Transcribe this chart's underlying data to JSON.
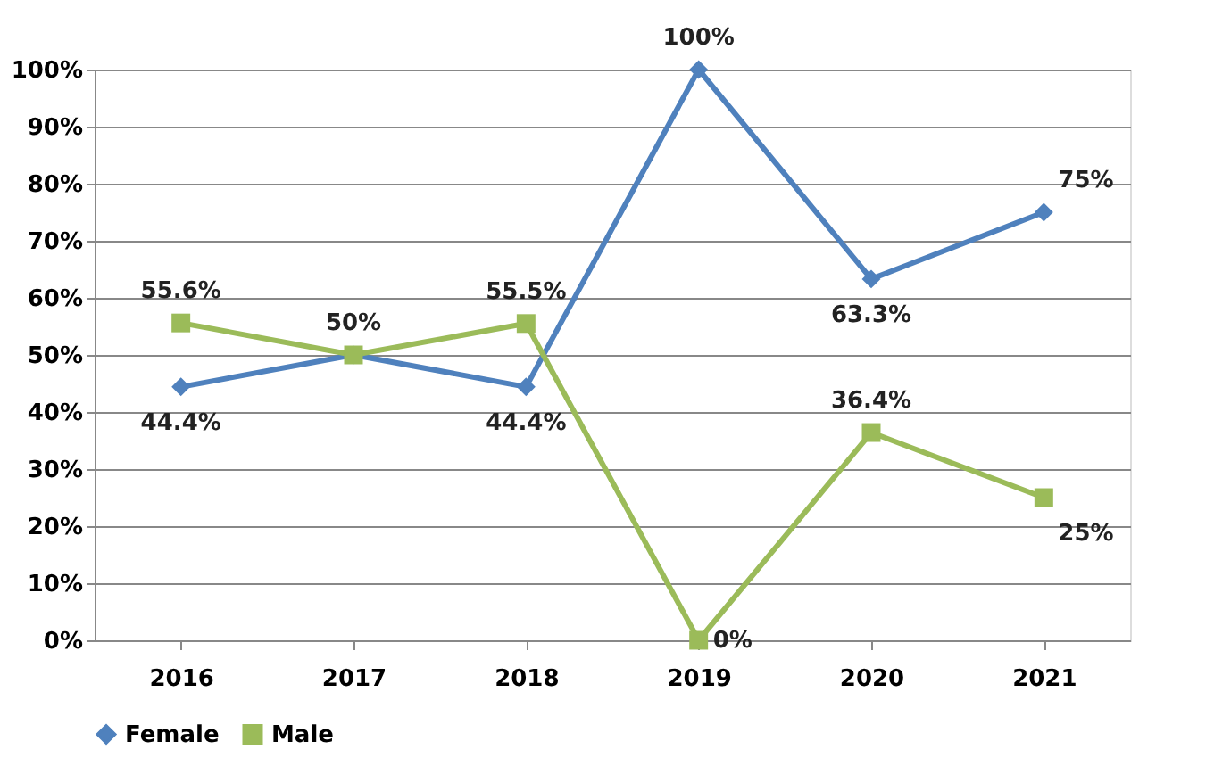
{
  "chart_data": {
    "type": "line",
    "categories": [
      "2016",
      "2017",
      "2018",
      "2019",
      "2020",
      "2021"
    ],
    "series": [
      {
        "name": "Female",
        "color": "#4f81bd",
        "marker": "diamond",
        "values": [
          44.4,
          50,
          44.4,
          100,
          63.3,
          75
        ],
        "value_labels": [
          "44.4%",
          "50%",
          "44.4%",
          "100%",
          "63.3%",
          "75%"
        ]
      },
      {
        "name": "Male",
        "color": "#9bbb59",
        "marker": "square",
        "values": [
          55.6,
          50,
          55.5,
          0,
          36.4,
          25
        ],
        "value_labels": [
          "55.6%",
          null,
          "55.5%",
          "0%",
          "36.4%",
          "25%"
        ]
      }
    ],
    "ylim": [
      0,
      100
    ],
    "yticks": [
      {
        "value": 0,
        "label": "0%"
      },
      {
        "value": 10,
        "label": "10%"
      },
      {
        "value": 20,
        "label": "20%"
      },
      {
        "value": 30,
        "label": "30%"
      },
      {
        "value": 40,
        "label": "40%"
      },
      {
        "value": 50,
        "label": "50%"
      },
      {
        "value": 60,
        "label": "60%"
      },
      {
        "value": 70,
        "label": "70%"
      },
      {
        "value": 80,
        "label": "80%"
      },
      {
        "value": 90,
        "label": "90%"
      },
      {
        "value": 100,
        "label": "100%"
      }
    ],
    "grid": "y",
    "legend": "bottom",
    "line_style": "solid"
  }
}
